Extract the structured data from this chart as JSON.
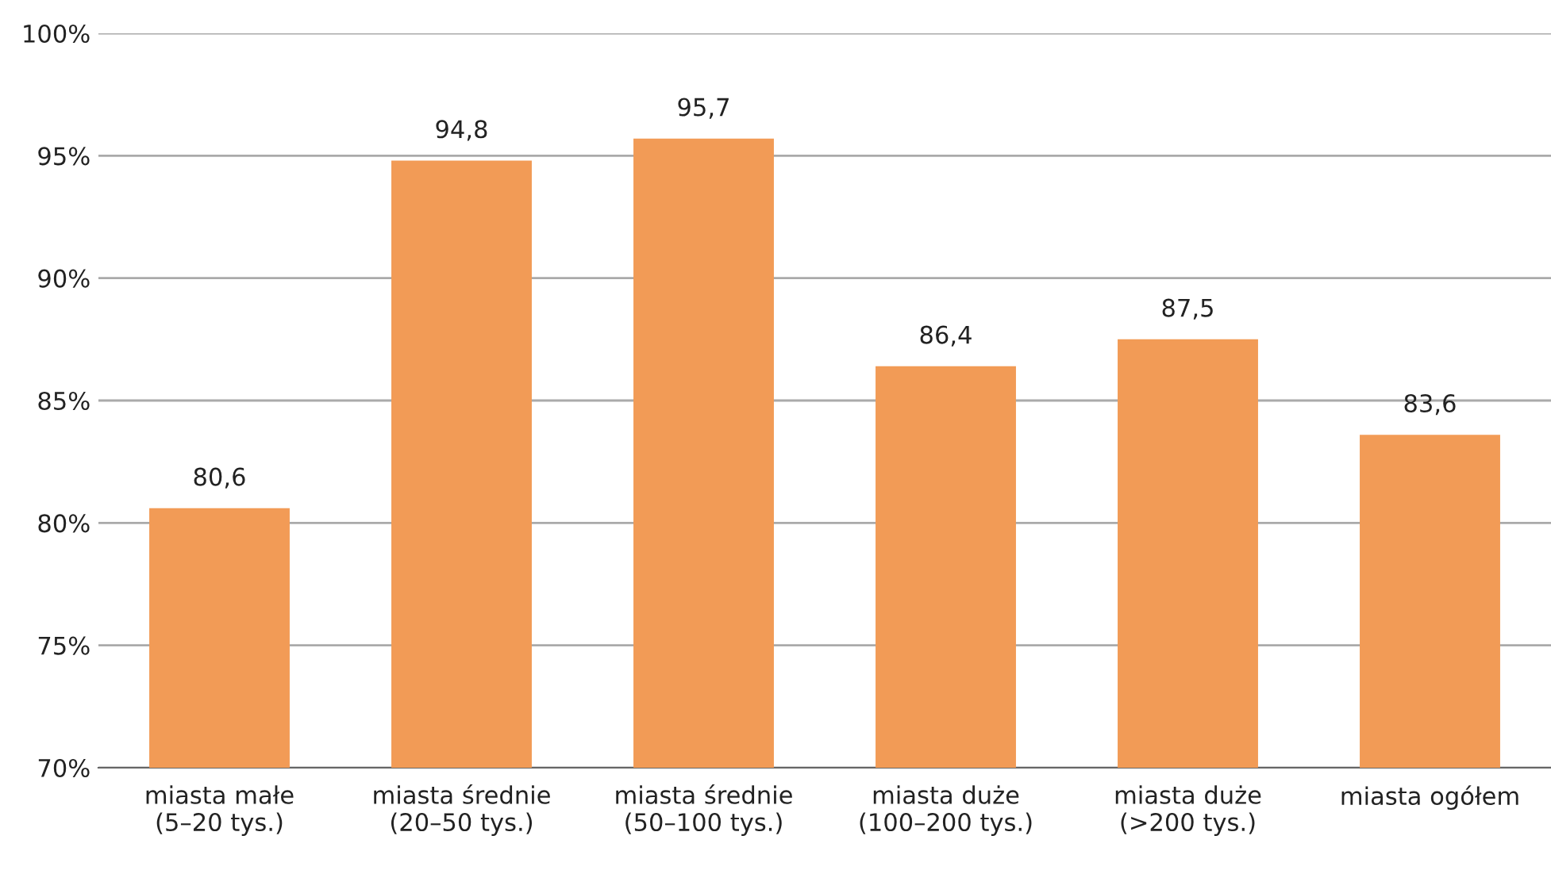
{
  "chart_data": {
    "type": "bar",
    "categories": [
      "miasta małe\n(5–20 tys.)",
      "miasta średnie\n(20–50 tys.)",
      "miasta średnie\n(50–100 tys.)",
      "miasta duże\n(100–200 tys.)",
      "miasta duże\n(>200 tys.)",
      "miasta ogółem"
    ],
    "values": [
      80.6,
      94.8,
      95.7,
      86.4,
      87.5,
      83.6
    ],
    "value_labels": [
      "80,6",
      "94,8",
      "95,7",
      "86,4",
      "87,5",
      "83,6"
    ],
    "color": "#f29b56",
    "ylim": [
      70,
      100
    ],
    "yticks": [
      {
        "value": 70,
        "label": "70%"
      },
      {
        "value": 75,
        "label": "75%"
      },
      {
        "value": 80,
        "label": "80%"
      },
      {
        "value": 85,
        "label": "85%"
      },
      {
        "value": 90,
        "label": "90%"
      },
      {
        "value": 95,
        "label": "95%"
      },
      {
        "value": 100,
        "label": "100%"
      }
    ],
    "grid": "y",
    "legend": false
  }
}
